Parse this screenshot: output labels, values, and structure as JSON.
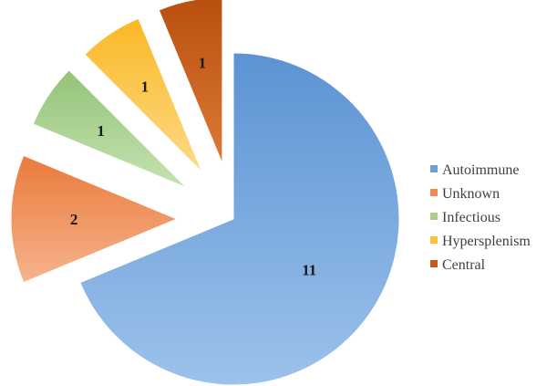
{
  "chart_data": {
    "type": "pie",
    "exploded": true,
    "legend_position": "right",
    "slices": [
      {
        "label": "Autoimmune",
        "value": 11,
        "color": "#6fa0d8"
      },
      {
        "label": "Unknown",
        "value": 2,
        "color": "#ee8b52"
      },
      {
        "label": "Infectious",
        "value": 1,
        "color": "#a7cf8a"
      },
      {
        "label": "Hypersplenism",
        "value": 1,
        "color": "#fdc23d"
      },
      {
        "label": "Central",
        "value": 1,
        "color": "#c65a16"
      }
    ]
  }
}
